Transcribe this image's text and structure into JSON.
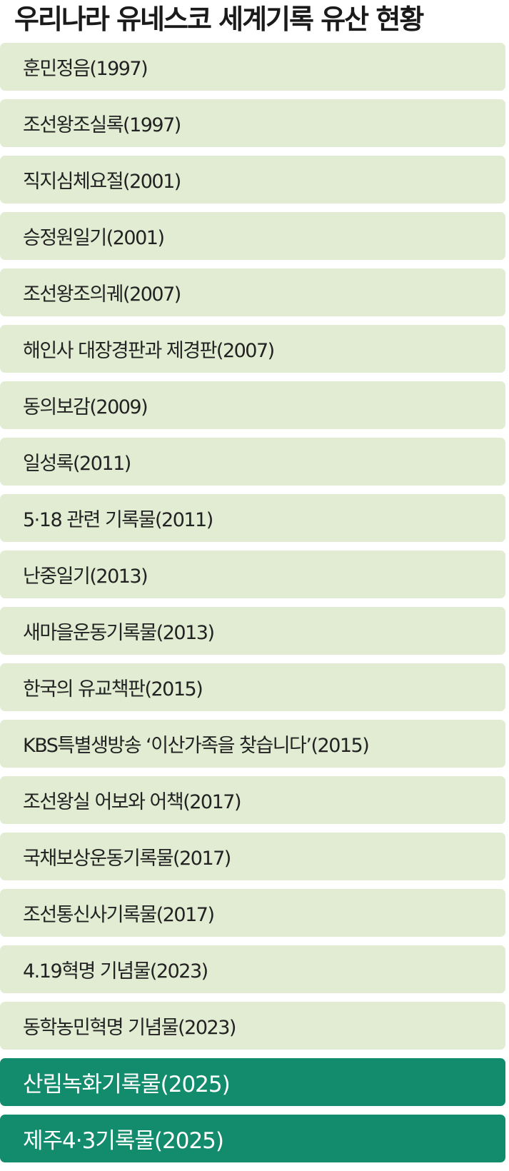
{
  "title": "우리나라 유네스코 세계기록 유산 현황",
  "colors": {
    "item_bg": "#e2ecd3",
    "highlight_bg": "#138c6e"
  },
  "items": [
    {
      "label": "훈민정음(1997)",
      "highlight": false
    },
    {
      "label": "조선왕조실록(1997)",
      "highlight": false
    },
    {
      "label": "직지심체요절(2001)",
      "highlight": false
    },
    {
      "label": "승정원일기(2001)",
      "highlight": false
    },
    {
      "label": "조선왕조의궤(2007)",
      "highlight": false
    },
    {
      "label": "해인사 대장경판과 제경판(2007)",
      "highlight": false
    },
    {
      "label": "동의보감(2009)",
      "highlight": false
    },
    {
      "label": "일성록(2011)",
      "highlight": false
    },
    {
      "label": "5·18 관련 기록물(2011)",
      "highlight": false
    },
    {
      "label": "난중일기(2013)",
      "highlight": false
    },
    {
      "label": "새마을운동기록물(2013)",
      "highlight": false
    },
    {
      "label": "한국의 유교책판(2015)",
      "highlight": false
    },
    {
      "label": "KBS특별생방송 ‘이산가족을 찾습니다’(2015)",
      "highlight": false
    },
    {
      "label": "조선왕실 어보와 어책(2017)",
      "highlight": false
    },
    {
      "label": "국채보상운동기록물(2017)",
      "highlight": false
    },
    {
      "label": "조선통신사기록물(2017)",
      "highlight": false
    },
    {
      "label": "4.19혁명 기념물(2023)",
      "highlight": false
    },
    {
      "label": "동학농민혁명 기념물(2023)",
      "highlight": false
    },
    {
      "label": "산림녹화기록물(2025)",
      "highlight": true
    },
    {
      "label": "제주4·3기록물(2025)",
      "highlight": true
    }
  ]
}
